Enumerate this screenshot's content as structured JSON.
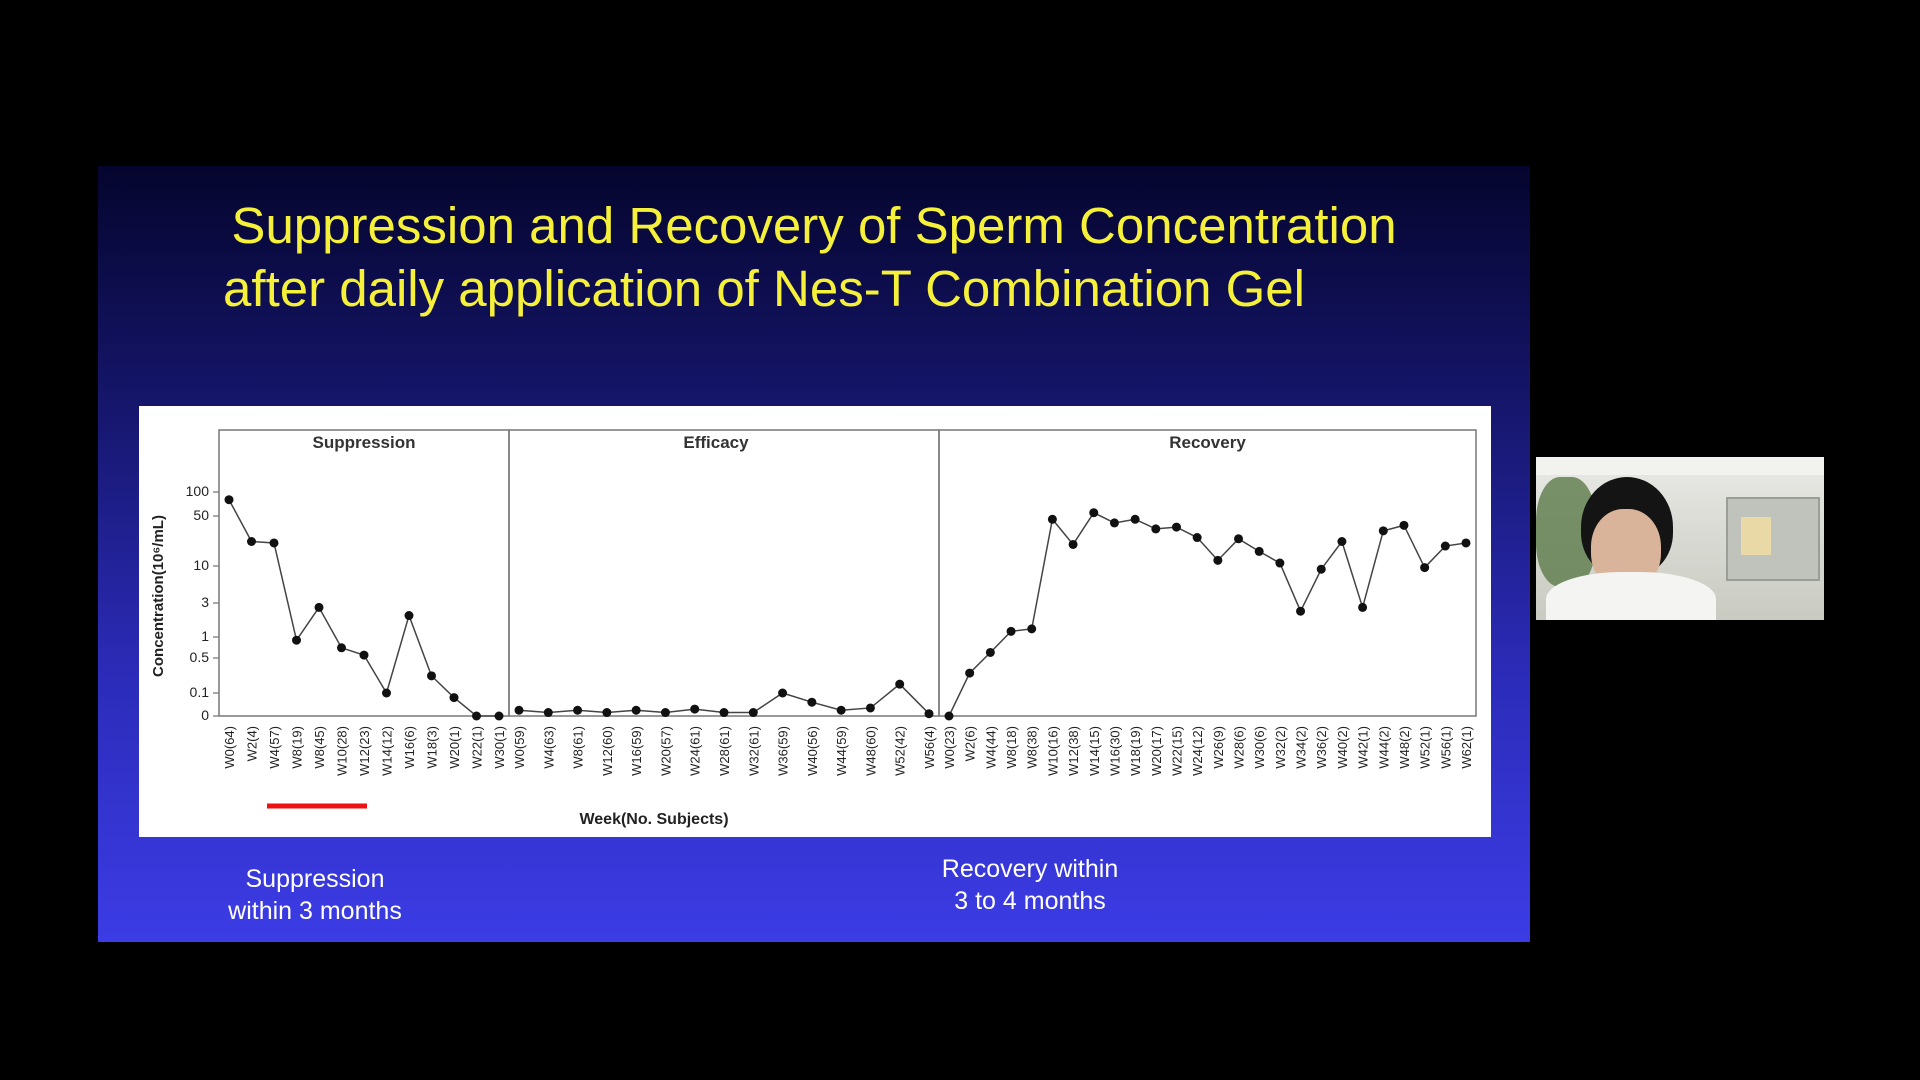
{
  "slide": {
    "title_line1": "Suppression and Recovery of Sperm Concentration",
    "title_line2": "after daily application of Nes-T Combination Gel",
    "caption_left": [
      "Suppression",
      "within 3 months"
    ],
    "caption_right": [
      "Recovery within",
      "3  to 4 months"
    ]
  },
  "chart_data": {
    "type": "line",
    "ylabel": "Concentration(10⁶/mL)",
    "xlabel": "Week(No. Subjects)",
    "yscale": "log-like",
    "yticks": [
      "100",
      "50",
      "10",
      "3",
      "1",
      "0.5",
      "0.1",
      "0"
    ],
    "highlight": {
      "panel": "Suppression",
      "from": "W4(57)",
      "to": "W12(23)",
      "color": "#ee1111"
    },
    "panels": [
      {
        "name": "Suppression",
        "categories": [
          "W0(64)",
          "W2(4)",
          "W4(57)",
          "W8(19)",
          "W8(45)",
          "W10(28)",
          "W12(23)",
          "W14(12)",
          "W16(6)",
          "W18(3)",
          "W20(1)",
          "W22(1)",
          "W30(1)"
        ],
        "values": [
          80,
          22,
          21,
          0.9,
          2.6,
          0.7,
          0.55,
          0.1,
          2.0,
          0.22,
          0.08,
          0,
          0
        ]
      },
      {
        "name": "Efficacy",
        "categories": [
          "W0(59)",
          "W4(63)",
          "W8(61)",
          "W12(60)",
          "W16(59)",
          "W20(57)",
          "W24(61)",
          "W28(61)",
          "W32(61)",
          "W36(59)",
          "W40(56)",
          "W44(59)",
          "W48(60)",
          "W52(42)",
          "W56(4)"
        ],
        "values": [
          0.025,
          0.015,
          0.025,
          0.015,
          0.025,
          0.015,
          0.03,
          0.015,
          0.015,
          0.1,
          0.06,
          0.025,
          0.035,
          0.15,
          0.01
        ]
      },
      {
        "name": "Recovery",
        "categories": [
          "W0(23)",
          "W2(6)",
          "W4(44)",
          "W8(18)",
          "W8(38)",
          "W10(16)",
          "W12(38)",
          "W14(15)",
          "W16(30)",
          "W18(19)",
          "W20(17)",
          "W22(15)",
          "W24(12)",
          "W26(9)",
          "W28(6)",
          "W30(6)",
          "W32(2)",
          "W34(2)",
          "W36(2)",
          "W40(2)",
          "W42(1)",
          "W44(2)",
          "W48(2)",
          "W52(1)",
          "W56(1)",
          "W62(1)"
        ],
        "values": [
          0,
          0.25,
          0.6,
          1.2,
          1.3,
          45,
          20,
          55,
          40,
          45,
          33,
          35,
          25,
          12,
          24,
          16,
          11,
          2.3,
          9,
          22,
          2.6,
          31,
          37,
          9.5,
          19,
          21
        ]
      }
    ]
  }
}
